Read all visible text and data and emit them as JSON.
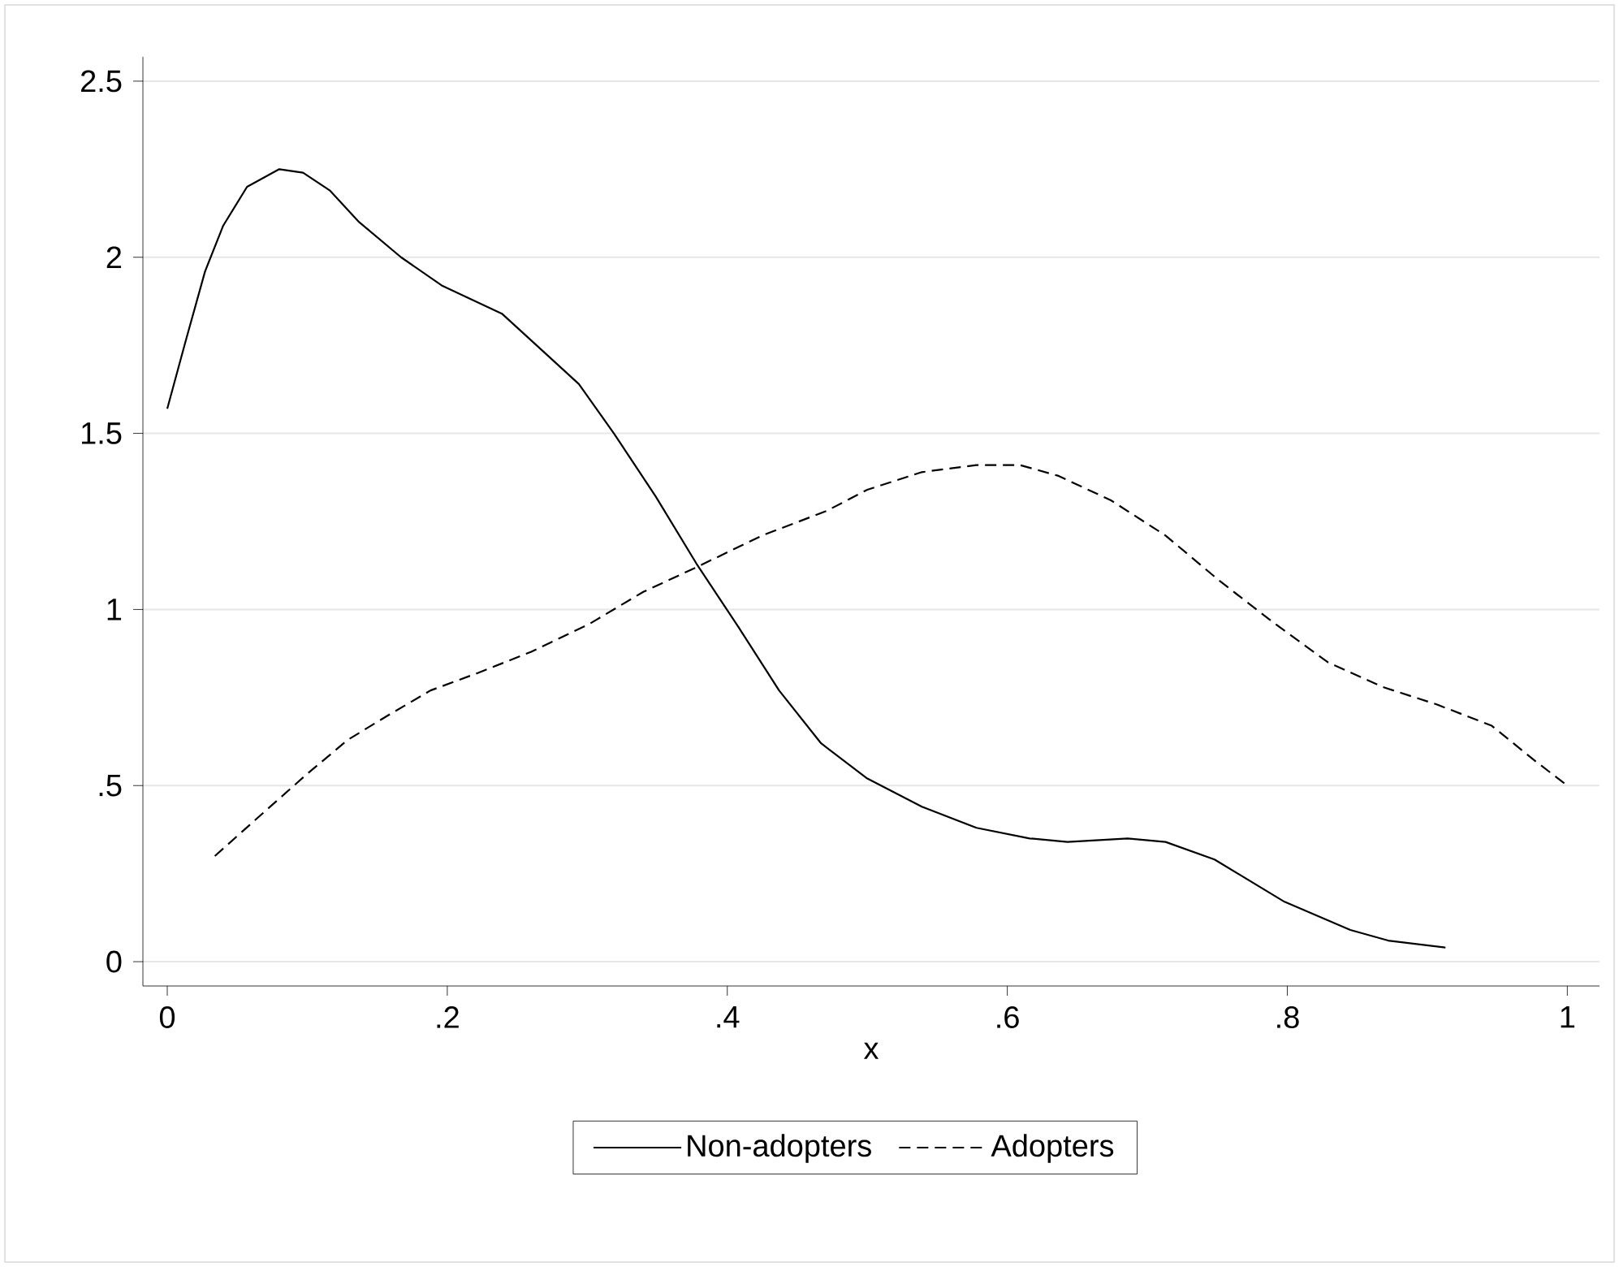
{
  "chart_data": {
    "type": "line",
    "xlabel": "x",
    "xlim": [
      -0.0174,
      1.023
    ],
    "ylim": [
      -0.069,
      2.569
    ],
    "xticks": [
      {
        "value": 0,
        "label": "0"
      },
      {
        "value": 0.2,
        "label": ".2"
      },
      {
        "value": 0.4,
        "label": ".4"
      },
      {
        "value": 0.6,
        "label": ".6"
      },
      {
        "value": 0.8,
        "label": ".8"
      },
      {
        "value": 1,
        "label": "1"
      }
    ],
    "yticks": [
      {
        "value": 0,
        "label": "0"
      },
      {
        "value": 0.5,
        "label": ".5"
      },
      {
        "value": 1,
        "label": "1"
      },
      {
        "value": 1.5,
        "label": "1.5"
      },
      {
        "value": 2,
        "label": "2"
      },
      {
        "value": 2.5,
        "label": "2.5"
      }
    ],
    "grid": "y",
    "legend": "bottom",
    "marker": "none",
    "series": [
      {
        "name": "Non-adopters",
        "color": "#000000",
        "line_style": "solid",
        "x": [
          0,
          0.013,
          0.027,
          0.04,
          0.057,
          0.08,
          0.097,
          0.116,
          0.137,
          0.167,
          0.196,
          0.239,
          0.272,
          0.294,
          0.319,
          0.349,
          0.378,
          0.408,
          0.437,
          0.467,
          0.5,
          0.539,
          0.578,
          0.616,
          0.643,
          0.686,
          0.713,
          0.748,
          0.798,
          0.845,
          0.872,
          0.913
        ],
        "values": [
          1.57,
          1.76,
          1.96,
          2.09,
          2.2,
          2.25,
          2.24,
          2.19,
          2.1,
          2.0,
          1.92,
          1.84,
          1.72,
          1.64,
          1.5,
          1.32,
          1.13,
          0.95,
          0.77,
          0.62,
          0.52,
          0.44,
          0.38,
          0.35,
          0.34,
          0.35,
          0.34,
          0.29,
          0.17,
          0.09,
          0.06,
          0.04
        ]
      },
      {
        "name": "Adopters",
        "color": "#000000",
        "line_style": "dashed",
        "x": [
          0.034,
          0.065,
          0.099,
          0.129,
          0.158,
          0.188,
          0.222,
          0.26,
          0.302,
          0.34,
          0.378,
          0.425,
          0.471,
          0.5,
          0.539,
          0.578,
          0.609,
          0.636,
          0.674,
          0.713,
          0.752,
          0.791,
          0.829,
          0.868,
          0.907,
          0.946,
          0.977,
          1.0
        ],
        "values": [
          0.3,
          0.41,
          0.53,
          0.63,
          0.7,
          0.77,
          0.82,
          0.88,
          0.96,
          1.05,
          1.12,
          1.21,
          1.28,
          1.34,
          1.39,
          1.41,
          1.41,
          1.38,
          1.31,
          1.21,
          1.08,
          0.96,
          0.85,
          0.78,
          0.73,
          0.67,
          0.57,
          0.5
        ]
      }
    ]
  }
}
